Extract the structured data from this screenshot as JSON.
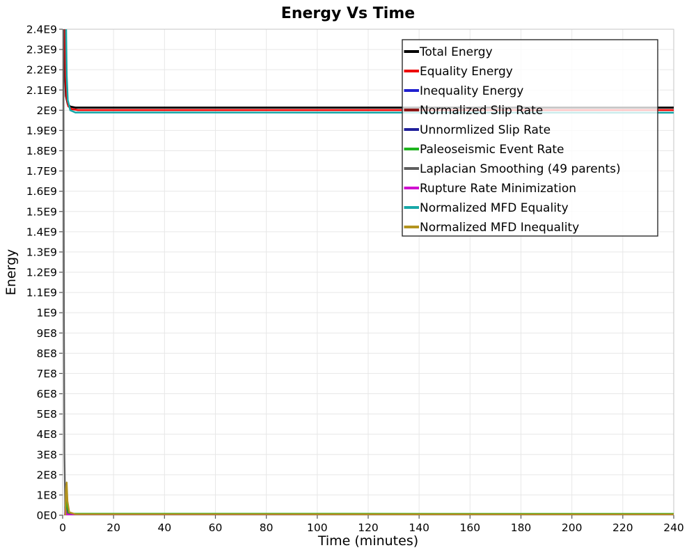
{
  "chart_data": {
    "type": "line",
    "title": "Energy Vs Time",
    "xlabel": "Time (minutes)",
    "ylabel": "Energy",
    "xlim": [
      0,
      240
    ],
    "ylim": [
      0,
      2400000000
    ],
    "grid": true,
    "legend_position": "inside-top-right",
    "x_ticks": [
      {
        "v": 0,
        "label": "0"
      },
      {
        "v": 20,
        "label": "20"
      },
      {
        "v": 40,
        "label": "40"
      },
      {
        "v": 60,
        "label": "60"
      },
      {
        "v": 80,
        "label": "80"
      },
      {
        "v": 100,
        "label": "100"
      },
      {
        "v": 120,
        "label": "120"
      },
      {
        "v": 140,
        "label": "140"
      },
      {
        "v": 160,
        "label": "160"
      },
      {
        "v": 180,
        "label": "180"
      },
      {
        "v": 200,
        "label": "200"
      },
      {
        "v": 220,
        "label": "220"
      },
      {
        "v": 240,
        "label": "240"
      }
    ],
    "y_ticks": [
      {
        "v": 0,
        "label": "0E0"
      },
      {
        "v": 100000000,
        "label": "1E8"
      },
      {
        "v": 200000000,
        "label": "2E8"
      },
      {
        "v": 300000000,
        "label": "3E8"
      },
      {
        "v": 400000000,
        "label": "4E8"
      },
      {
        "v": 500000000,
        "label": "5E8"
      },
      {
        "v": 600000000,
        "label": "6E8"
      },
      {
        "v": 700000000,
        "label": "7E8"
      },
      {
        "v": 800000000,
        "label": "8E8"
      },
      {
        "v": 900000000,
        "label": "9E8"
      },
      {
        "v": 1000000000,
        "label": "1E9"
      },
      {
        "v": 1100000000,
        "label": "1.1E9"
      },
      {
        "v": 1200000000,
        "label": "1.2E9"
      },
      {
        "v": 1300000000,
        "label": "1.3E9"
      },
      {
        "v": 1400000000,
        "label": "1.4E9"
      },
      {
        "v": 1500000000,
        "label": "1.5E9"
      },
      {
        "v": 1600000000,
        "label": "1.6E9"
      },
      {
        "v": 1700000000,
        "label": "1.7E9"
      },
      {
        "v": 1800000000,
        "label": "1.8E9"
      },
      {
        "v": 1900000000,
        "label": "1.9E9"
      },
      {
        "v": 2000000000,
        "label": "2E9"
      },
      {
        "v": 2100000000,
        "label": "2.1E9"
      },
      {
        "v": 2200000000,
        "label": "2.2E9"
      },
      {
        "v": 2300000000,
        "label": "2.3E9"
      },
      {
        "v": 2400000000,
        "label": "2.4E9"
      }
    ],
    "series": [
      {
        "name": "Total Energy",
        "color": "#000000",
        "width": 2.8,
        "points": [
          [
            0.55,
            2750000000
          ],
          [
            0.75,
            2400000000
          ],
          [
            0.95,
            2180000000
          ],
          [
            1.3,
            2070000000
          ],
          [
            2.0,
            2030000000
          ],
          [
            3.0,
            2018000000
          ],
          [
            5,
            2013000000
          ],
          [
            240,
            2013000000
          ]
        ]
      },
      {
        "name": "Equality Energy",
        "color": "#ed0000",
        "width": 2.6,
        "points": [
          [
            0.75,
            2750000000
          ],
          [
            0.95,
            2400000000
          ],
          [
            1.15,
            2180000000
          ],
          [
            1.5,
            2065000000
          ],
          [
            2.2,
            2020000000
          ],
          [
            3.5,
            2006000000
          ],
          [
            6,
            2001000000
          ],
          [
            240,
            2001000000
          ]
        ]
      },
      {
        "name": "Inequality Energy",
        "color": "#2020cf",
        "width": 2.4,
        "points": [
          [
            0.95,
            0
          ],
          [
            1.05,
            120000000
          ],
          [
            1.15,
            152000000
          ],
          [
            1.35,
            60000000
          ],
          [
            1.8,
            10000000
          ],
          [
            3,
            2500000
          ],
          [
            240,
            2000000
          ]
        ]
      },
      {
        "name": "Normalized Slip Rate",
        "color": "#8c1515",
        "width": 2.4,
        "points": [
          [
            0.95,
            0
          ],
          [
            1.1,
            45000000
          ],
          [
            1.5,
            6000000
          ],
          [
            3,
            2000000
          ],
          [
            240,
            1800000
          ]
        ]
      },
      {
        "name": "Unnormlized Slip Rate",
        "color": "#20209b",
        "width": 2.4,
        "points": [
          [
            1.0,
            0
          ],
          [
            1.15,
            80000000
          ],
          [
            1.6,
            8000000
          ],
          [
            3,
            2000000
          ],
          [
            240,
            1800000
          ]
        ]
      },
      {
        "name": "Paleoseismic Event Rate",
        "color": "#1eb41e",
        "width": 2.4,
        "points": [
          [
            1.05,
            0
          ],
          [
            1.2,
            110000000
          ],
          [
            1.42,
            145000000
          ],
          [
            1.7,
            50000000
          ],
          [
            2.3,
            12000000
          ],
          [
            4,
            7500000
          ],
          [
            240,
            7000000
          ]
        ]
      },
      {
        "name": "Laplacian Smoothing (49 parents)",
        "color": "#5f5f5f",
        "width": 2.4,
        "points": [
          [
            0.25,
            2750000000
          ],
          [
            0.35,
            2000000000
          ],
          [
            0.5,
            1000000000
          ],
          [
            0.7,
            300000000
          ],
          [
            1.0,
            50000000
          ],
          [
            1.6,
            8000000
          ],
          [
            4,
            3000000
          ],
          [
            240,
            3000000
          ]
        ]
      },
      {
        "name": "Rupture Rate Minimization",
        "color": "#cf10cf",
        "width": 2.4,
        "points": [
          [
            1.0,
            0
          ],
          [
            1.1,
            35000000
          ],
          [
            1.5,
            4000000
          ],
          [
            3,
            1200000
          ],
          [
            240,
            1000000
          ]
        ]
      },
      {
        "name": "Normalized MFD Equality",
        "color": "#18a8a8",
        "width": 2.6,
        "points": [
          [
            1.1,
            2750000000
          ],
          [
            1.35,
            2400000000
          ],
          [
            1.6,
            2170000000
          ],
          [
            2.0,
            2050000000
          ],
          [
            3.0,
            2000000000
          ],
          [
            5,
            1989000000
          ],
          [
            240,
            1988000000
          ]
        ]
      },
      {
        "name": "Normalized MFD Inequality",
        "color": "#b3931e",
        "width": 2.4,
        "points": [
          [
            1.1,
            0
          ],
          [
            1.3,
            130000000
          ],
          [
            1.6,
            162000000
          ],
          [
            1.9,
            70000000
          ],
          [
            2.6,
            15000000
          ],
          [
            5,
            5000000
          ],
          [
            240,
            4500000
          ]
        ]
      }
    ],
    "colors": {
      "grid": "#e7e7e7",
      "plot_border": "#c4c4c4",
      "tick_mark": "#555555",
      "legend_border": "#2b2b2b",
      "legend_background": "#ffffff"
    }
  }
}
